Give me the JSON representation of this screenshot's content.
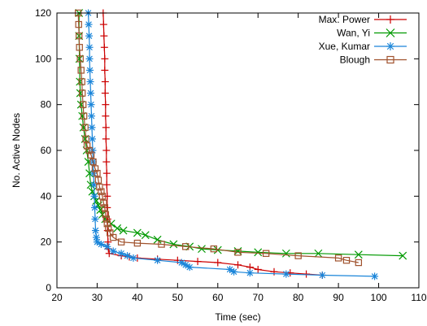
{
  "chart_data": {
    "type": "line",
    "title": "",
    "xlabel": "Time (sec)",
    "ylabel": "No. Active Nodes",
    "xlim": [
      20,
      110
    ],
    "ylim": [
      0,
      120
    ],
    "xticks": [
      20,
      30,
      40,
      50,
      60,
      70,
      80,
      90,
      100,
      110
    ],
    "yticks": [
      0,
      20,
      40,
      60,
      80,
      100,
      120
    ],
    "grid": false,
    "legend_position": "top-right",
    "series": [
      {
        "name": "Max. Power",
        "color": "#cc0000",
        "marker": "plus",
        "points": [
          [
            31.5,
            120
          ],
          [
            31.6,
            115
          ],
          [
            31.7,
            110
          ],
          [
            31.8,
            105
          ],
          [
            31.9,
            100
          ],
          [
            31.9,
            95
          ],
          [
            32.0,
            90
          ],
          [
            32.0,
            85
          ],
          [
            32.1,
            80
          ],
          [
            32.1,
            75
          ],
          [
            32.2,
            70
          ],
          [
            32.2,
            65
          ],
          [
            32.3,
            60
          ],
          [
            32.3,
            55
          ],
          [
            32.4,
            50
          ],
          [
            32.4,
            45
          ],
          [
            32.5,
            40
          ],
          [
            32.5,
            35
          ],
          [
            32.6,
            30
          ],
          [
            32.6,
            25
          ],
          [
            32.7,
            20
          ],
          [
            32.8,
            17
          ],
          [
            33,
            15
          ],
          [
            36,
            14
          ],
          [
            38,
            13.5
          ],
          [
            40,
            13
          ],
          [
            45,
            12.5
          ],
          [
            50,
            12
          ],
          [
            55,
            11.5
          ],
          [
            60,
            11
          ],
          [
            65,
            10
          ],
          [
            68,
            9
          ],
          [
            70,
            8
          ],
          [
            74,
            7
          ],
          [
            78,
            6.5
          ],
          [
            82,
            6
          ],
          [
            86,
            5.5
          ]
        ]
      },
      {
        "name": "Wan, Yi",
        "color": "#009900",
        "marker": "x",
        "points": [
          [
            25.5,
            120
          ],
          [
            25.5,
            110
          ],
          [
            25.6,
            100
          ],
          [
            25.7,
            90
          ],
          [
            25.8,
            85
          ],
          [
            26,
            80
          ],
          [
            26.3,
            75
          ],
          [
            26.6,
            70
          ],
          [
            27,
            65
          ],
          [
            27.4,
            60
          ],
          [
            27.8,
            55
          ],
          [
            28.1,
            50
          ],
          [
            28.4,
            45
          ],
          [
            28.8,
            42
          ],
          [
            29.3,
            40
          ],
          [
            29.8,
            38
          ],
          [
            30.3,
            36
          ],
          [
            30.8,
            34
          ],
          [
            31.3,
            32
          ],
          [
            32,
            30
          ],
          [
            33.5,
            28
          ],
          [
            35,
            26
          ],
          [
            36.5,
            25
          ],
          [
            40,
            24
          ],
          [
            42,
            23
          ],
          [
            45,
            21
          ],
          [
            49,
            19
          ],
          [
            53,
            18
          ],
          [
            56,
            17
          ],
          [
            60,
            16.5
          ],
          [
            65,
            16
          ],
          [
            70,
            15.5
          ],
          [
            77,
            15
          ],
          [
            85,
            15
          ],
          [
            95,
            14.5
          ],
          [
            106,
            14
          ]
        ]
      },
      {
        "name": "Xue, Kumar",
        "color": "#1a85d9",
        "marker": "star",
        "points": [
          [
            27.8,
            120
          ],
          [
            27.9,
            115
          ],
          [
            28.0,
            110
          ],
          [
            28.1,
            105
          ],
          [
            28.1,
            100
          ],
          [
            28.2,
            95
          ],
          [
            28.3,
            90
          ],
          [
            28.4,
            85
          ],
          [
            28.5,
            80
          ],
          [
            28.6,
            75
          ],
          [
            28.7,
            70
          ],
          [
            28.8,
            65
          ],
          [
            28.9,
            60
          ],
          [
            29.0,
            55
          ],
          [
            29.1,
            50
          ],
          [
            29.2,
            45
          ],
          [
            29.3,
            40
          ],
          [
            29.4,
            35
          ],
          [
            29.5,
            30
          ],
          [
            29.6,
            25
          ],
          [
            29.8,
            22
          ],
          [
            30,
            20
          ],
          [
            31,
            19
          ],
          [
            32.5,
            18
          ],
          [
            34,
            16
          ],
          [
            36,
            15
          ],
          [
            37.5,
            14
          ],
          [
            39,
            13
          ],
          [
            45,
            12
          ],
          [
            51,
            11
          ],
          [
            52,
            10
          ],
          [
            53,
            9
          ],
          [
            63,
            8
          ],
          [
            64,
            7
          ],
          [
            68,
            6.5
          ],
          [
            77,
            6
          ],
          [
            86,
            5.5
          ],
          [
            99,
            5
          ]
        ]
      },
      {
        "name": "Blough",
        "color": "#a0522d",
        "marker": "square",
        "points": [
          [
            25.3,
            120
          ],
          [
            25.4,
            115
          ],
          [
            25.5,
            110
          ],
          [
            25.6,
            105
          ],
          [
            25.8,
            100
          ],
          [
            26,
            95
          ],
          [
            26.2,
            90
          ],
          [
            26.3,
            85
          ],
          [
            26.5,
            80
          ],
          [
            26.7,
            75
          ],
          [
            27,
            70
          ],
          [
            27.2,
            65
          ],
          [
            27.5,
            62
          ],
          [
            28,
            60
          ],
          [
            28.5,
            58
          ],
          [
            29,
            55
          ],
          [
            29.5,
            52
          ],
          [
            30,
            50
          ],
          [
            30.3,
            47
          ],
          [
            30.6,
            44
          ],
          [
            31,
            42
          ],
          [
            31.3,
            40
          ],
          [
            31.6,
            37
          ],
          [
            31.9,
            35
          ],
          [
            32.1,
            32
          ],
          [
            32.3,
            30
          ],
          [
            32.5,
            28
          ],
          [
            32.8,
            26
          ],
          [
            33.2,
            24
          ],
          [
            34,
            22
          ],
          [
            36,
            20
          ],
          [
            40,
            19.5
          ],
          [
            46,
            19
          ],
          [
            52,
            18
          ],
          [
            59,
            17
          ],
          [
            65,
            15.5
          ],
          [
            72,
            15
          ],
          [
            80,
            14
          ],
          [
            90,
            13
          ],
          [
            92,
            12
          ],
          [
            95,
            11
          ]
        ]
      }
    ]
  }
}
